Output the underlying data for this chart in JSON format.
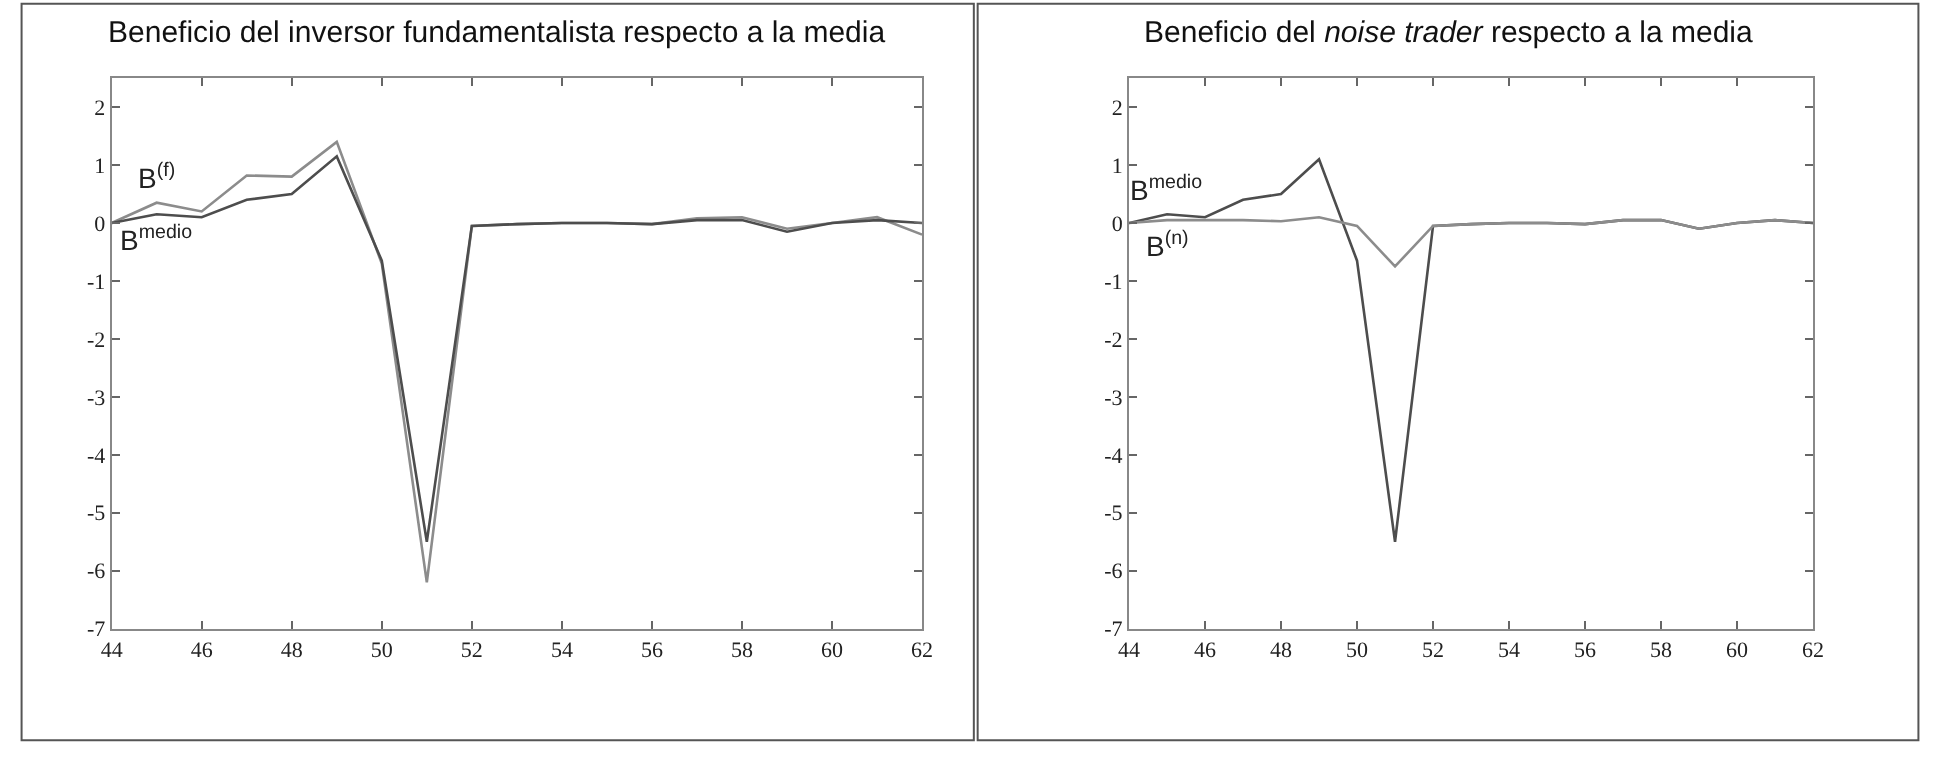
{
  "chart_data": [
    {
      "type": "line",
      "title": "Beneficio del inversor fundamentalista respecto a la media",
      "x": [
        44,
        45,
        46,
        47,
        48,
        49,
        50,
        51,
        52,
        53,
        54,
        55,
        56,
        57,
        58,
        59,
        60,
        61,
        62
      ],
      "xlim": [
        44,
        62
      ],
      "xticks": [
        44,
        46,
        48,
        50,
        52,
        54,
        56,
        58,
        60,
        62
      ],
      "ylim": [
        -7,
        2.5
      ],
      "yticks": [
        -7,
        -6,
        -5,
        -4,
        -3,
        -2,
        -1,
        0,
        1,
        2
      ],
      "marker": "none",
      "line_style": "solid",
      "series": [
        {
          "name": "B$^{(f)}$",
          "color": "#8c8c8c",
          "values": [
            0,
            0.35,
            0.2,
            0.82,
            0.8,
            1.4,
            -0.7,
            -6.2,
            -0.05,
            -0.02,
            0,
            0,
            -0.02,
            0.08,
            0.1,
            -0.1,
            0,
            0.1,
            -0.2
          ]
        },
        {
          "name": "B$^{medio}$",
          "color": "#4d4d4d",
          "values": [
            0,
            0.15,
            0.1,
            0.4,
            0.5,
            1.15,
            -0.65,
            -5.5,
            -0.05,
            -0.02,
            0,
            0,
            -0.02,
            0.05,
            0.05,
            -0.15,
            0,
            0.05,
            0
          ]
        }
      ]
    },
    {
      "type": "line",
      "title": "Beneficio del *noise trader* respecto a la media",
      "x": [
        44,
        45,
        46,
        47,
        48,
        49,
        50,
        51,
        52,
        53,
        54,
        55,
        56,
        57,
        58,
        59,
        60,
        61,
        62
      ],
      "xlim": [
        44,
        62
      ],
      "xticks": [
        44,
        46,
        48,
        50,
        52,
        54,
        56,
        58,
        60,
        62
      ],
      "ylim": [
        -7,
        2.5
      ],
      "yticks": [
        -7,
        -6,
        -5,
        -4,
        -3,
        -2,
        -1,
        0,
        1,
        2
      ],
      "marker": "none",
      "line_style": "solid",
      "series": [
        {
          "name": "B$^{medio}$",
          "color": "#4d4d4d",
          "values": [
            0,
            0.15,
            0.1,
            0.4,
            0.5,
            1.1,
            -0.65,
            -5.5,
            -0.05,
            -0.02,
            0,
            0,
            -0.02,
            0.05,
            0.05,
            -0.1,
            0,
            0.05,
            0
          ]
        },
        {
          "name": "B$^{(n)}$",
          "color": "#8c8c8c",
          "values": [
            0,
            0.05,
            0.05,
            0.05,
            0.03,
            0.1,
            -0.05,
            -0.75,
            -0.05,
            -0.02,
            0,
            0,
            -0.02,
            0.05,
            0.05,
            -0.1,
            0,
            0.05,
            0
          ]
        }
      ]
    }
  ]
}
